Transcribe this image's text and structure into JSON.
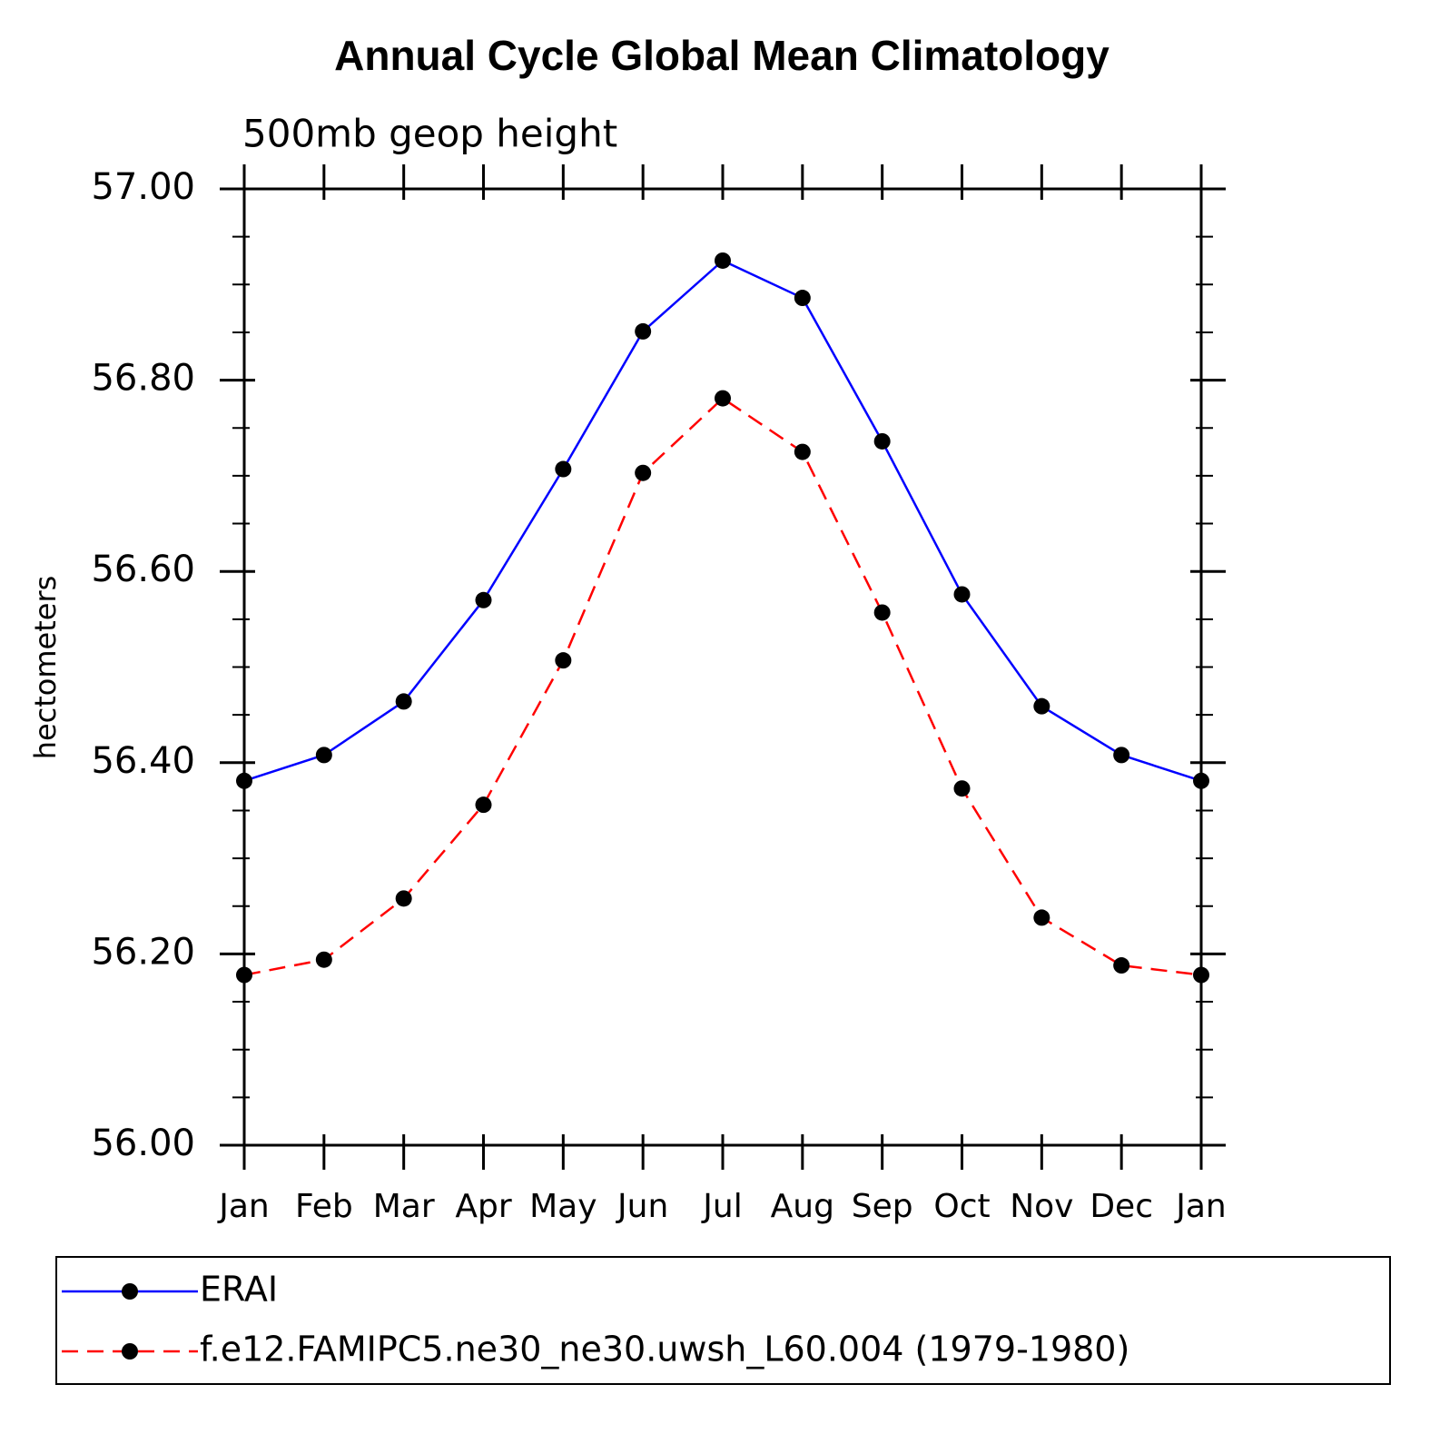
{
  "chart_data": {
    "type": "line",
    "title": "Annual Cycle Global Mean Climatology",
    "subtitle": "500mb geop height",
    "y_label": "hectometers",
    "categories": [
      "Jan",
      "Feb",
      "Mar",
      "Apr",
      "May",
      "Jun",
      "Jul",
      "Aug",
      "Sep",
      "Oct",
      "Nov",
      "Dec",
      "Jan"
    ],
    "series": [
      {
        "name": "ERAI",
        "color": "#0000ff",
        "dash": false,
        "values": [
          56.381,
          56.408,
          56.464,
          56.57,
          56.707,
          56.851,
          56.925,
          56.886,
          56.736,
          56.576,
          56.459,
          56.408,
          56.381
        ]
      },
      {
        "name": "f.e12.FAMIPC5.ne30_ne30.uwsh_L60.004 (1979-1980)",
        "color": "#ff0000",
        "dash": true,
        "values": [
          56.178,
          56.194,
          56.258,
          56.356,
          56.507,
          56.703,
          56.781,
          56.725,
          56.557,
          56.373,
          56.238,
          56.188,
          56.178
        ]
      }
    ],
    "ylim": [
      56.0,
      57.0
    ],
    "yticks": [
      {
        "value": 56.0,
        "label": "56.00"
      },
      {
        "value": 56.2,
        "label": "56.20"
      },
      {
        "value": 56.4,
        "label": "56.40"
      },
      {
        "value": 56.6,
        "label": "56.60"
      },
      {
        "value": 56.8,
        "label": "56.80"
      },
      {
        "value": 57.0,
        "label": "57.00"
      }
    ],
    "yminorticks": [
      56.05,
      56.1,
      56.15,
      56.25,
      56.3,
      56.35,
      56.45,
      56.5,
      56.55,
      56.65,
      56.7,
      56.75,
      56.85,
      56.9,
      56.95
    ],
    "legend": "bottom"
  }
}
